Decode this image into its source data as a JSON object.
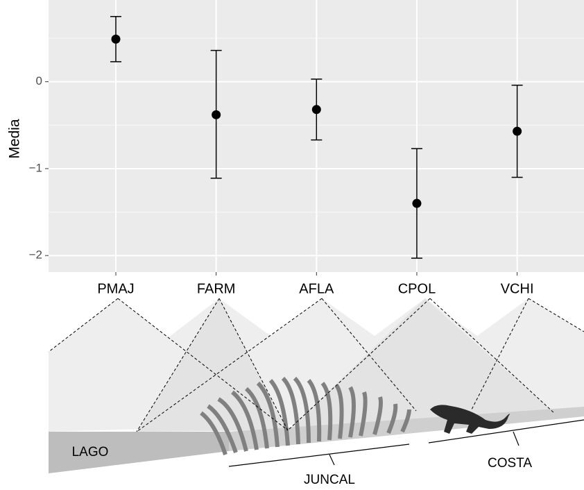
{
  "chart_data": {
    "type": "pointrange",
    "y_label": "Media",
    "categories": [
      "PMAJ",
      "FARM",
      "AFLA",
      "CPOL",
      "VCHI"
    ],
    "values": [
      0.49,
      -0.38,
      -0.32,
      -1.4,
      -0.57
    ],
    "lower": [
      0.23,
      -1.11,
      -0.67,
      -2.03,
      -1.1
    ],
    "upper": [
      0.75,
      0.36,
      0.03,
      -0.77,
      -0.04
    ],
    "color": "#000000",
    "ylim": [
      -2.19,
      0.94
    ],
    "yticks": [
      0,
      {
        "value": -1,
        "label": "−1"
      },
      {
        "value": -2,
        "label": "−2"
      }
    ],
    "grid": true
  },
  "diagram": {
    "labels": [
      "LAGO",
      "JUNCAL",
      "COSTA"
    ]
  }
}
